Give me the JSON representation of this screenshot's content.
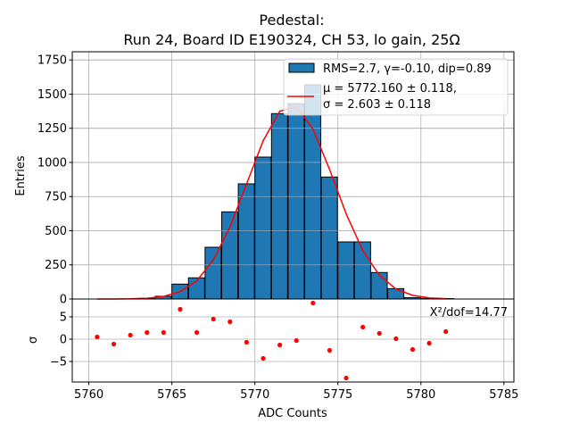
{
  "chart_data": [
    {
      "type": "bar",
      "title_line1": "Pedestal:",
      "title_line2": "Run 24, Board ID E190324, CH 53, lo gain, 25Ω",
      "ylabel": "Entries",
      "xlim": [
        5759.0,
        5785.6
      ],
      "ylim": [
        0,
        1810
      ],
      "yticks": [
        0,
        250,
        500,
        750,
        1000,
        1250,
        1500,
        1750
      ],
      "ytick_labels": [
        "0",
        "250",
        "500",
        "750",
        "1000",
        "1250",
        "1500",
        "1750"
      ],
      "grid": true,
      "bin_width": 0.97,
      "bins": [
        5763,
        5764,
        5765,
        5766,
        5767,
        5768,
        5769,
        5770,
        5771,
        5772,
        5773,
        5774,
        5775,
        5776,
        5777,
        5778,
        5779,
        5780,
        5781
      ],
      "values": [
        5,
        20,
        109,
        155,
        379,
        638,
        843,
        1039,
        1357,
        1430,
        1568,
        893,
        418,
        418,
        194,
        76,
        10,
        5,
        3
      ],
      "bar_color": "#1f77b4",
      "fit": {
        "x": [
          5760.5,
          5761.5,
          5762.5,
          5763.5,
          5764.5,
          5765.5,
          5766.5,
          5767.5,
          5768.5,
          5769.5,
          5770.5,
          5771.5,
          5772.5,
          5773.5,
          5774.5,
          5775.5,
          5776.5,
          5777.5,
          5778.5,
          5779.5,
          5780.5,
          5781.5
        ],
        "y": [
          0,
          0.3,
          1.5,
          5.6,
          18.7,
          54,
          133,
          286,
          528,
          843,
          1159,
          1375,
          1408,
          1244,
          948,
          623,
          354,
          174,
          73,
          27,
          8.4,
          2.3
        ],
        "color": "#ff0000"
      },
      "legend": {
        "placement": "top-right",
        "hist_label": "RMS=2.7, γ=-0.10, dip=0.89",
        "fit_label_line1": "μ = 5772.160 ± 0.118,",
        "fit_label_line2": "σ = 2.603 ± 0.118"
      }
    },
    {
      "type": "scatter",
      "xlabel": "ADC Counts",
      "ylabel": "σ",
      "xlim": [
        5759.0,
        5785.6
      ],
      "ylim": [
        -9.6,
        9
      ],
      "xticks": [
        5760,
        5765,
        5770,
        5775,
        5780,
        5785
      ],
      "xtick_labels": [
        "5760",
        "5765",
        "5770",
        "5775",
        "5780",
        "5785"
      ],
      "yticks": [
        5,
        0,
        -5
      ],
      "ytick_labels": [
        "5",
        "0",
        "−5"
      ],
      "grid": true,
      "x": [
        5760.5,
        5761.5,
        5762.5,
        5763.5,
        5764.5,
        5765.5,
        5766.5,
        5767.5,
        5768.5,
        5769.5,
        5770.5,
        5771.5,
        5772.5,
        5773.5,
        5774.5,
        5775.5,
        5776.5,
        5777.5,
        5778.5,
        5779.5,
        5780.5,
        5781.5
      ],
      "y": [
        0.5,
        -1.1,
        0.9,
        1.5,
        1.5,
        6.7,
        1.5,
        4.5,
        3.9,
        -0.7,
        -4.3,
        -1.3,
        -0.3,
        8.1,
        -2.5,
        -8.7,
        2.7,
        1.3,
        0.1,
        -2.3,
        -0.9,
        1.7
      ],
      "point_color": "#ff0000",
      "annotation": "X²/dof=14.77"
    }
  ]
}
